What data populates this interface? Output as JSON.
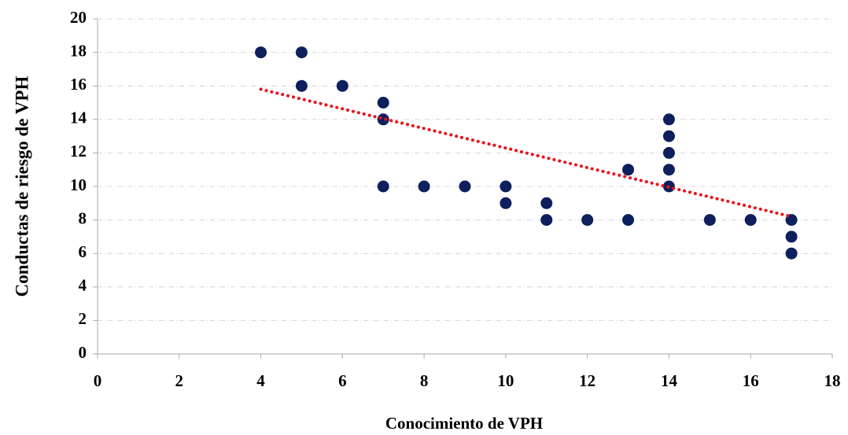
{
  "chart_data": {
    "type": "scatter",
    "xlabel": "Conocimiento de VPH",
    "ylabel": "Conductas de riesgo de VPH",
    "x": [
      4,
      5,
      5,
      6,
      7,
      7,
      7,
      8,
      9,
      10,
      10,
      11,
      11,
      12,
      13,
      13,
      14,
      14,
      14,
      14,
      14,
      15,
      16,
      17,
      17,
      17
    ],
    "series": [
      {
        "color": "#0d1f5c",
        "values": [
          18,
          18,
          16,
          16,
          15,
          14,
          10,
          10,
          10,
          10,
          9,
          9,
          8,
          8,
          11,
          8,
          14,
          13,
          12,
          11,
          10,
          8,
          8,
          8,
          7,
          6
        ]
      }
    ],
    "trendline": {
      "x": [
        4,
        17
      ],
      "y": [
        15.8,
        8.2
      ],
      "color": "#e8141b"
    },
    "xlim": [
      0,
      18
    ],
    "xticks": [
      0,
      2,
      4,
      6,
      8,
      10,
      12,
      14,
      16,
      18
    ],
    "ylim": [
      0,
      20
    ],
    "yticks": [
      0,
      2,
      4,
      6,
      8,
      10,
      12,
      14,
      16,
      18,
      20
    ],
    "grid": true
  }
}
